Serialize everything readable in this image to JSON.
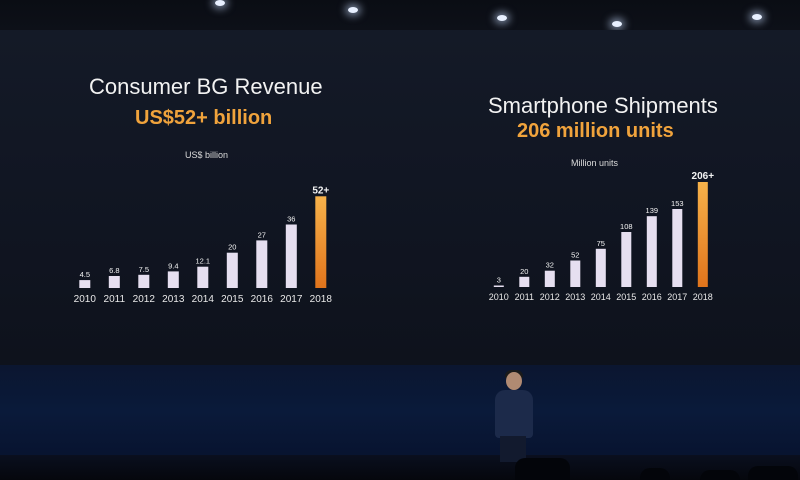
{
  "left_panel": {
    "title": "Consumer BG Revenue",
    "highlight": "US$52+ billion",
    "unit_label": "US$ billion"
  },
  "right_panel": {
    "title": "Smartphone Shipments",
    "highlight": "206 million units",
    "unit_label": "Million units"
  },
  "colors": {
    "bar_regular": "#e6dff0",
    "bar_highlight_top": "#f7b24a",
    "bar_highlight_bottom": "#e0741c",
    "title_text": "#f2f2f2",
    "highlight_text": "#f0a33c",
    "background": "#121725"
  },
  "chart_data": [
    {
      "type": "bar",
      "title": "Consumer BG Revenue",
      "subtitle": "US$52+ billion",
      "ylabel": "US$ billion",
      "categories": [
        "2010",
        "2011",
        "2012",
        "2013",
        "2014",
        "2015",
        "2016",
        "2017",
        "2018"
      ],
      "values": [
        4.5,
        6.8,
        7.5,
        9.4,
        12.1,
        20,
        27,
        36,
        52
      ],
      "value_labels": [
        "4.5",
        "6.8",
        "7.5",
        "9.4",
        "12.1",
        "20",
        "27",
        "36",
        "52+"
      ],
      "highlight_index": 8,
      "ylim": [
        0,
        55
      ],
      "grid": false
    },
    {
      "type": "bar",
      "title": "Smartphone Shipments",
      "subtitle": "206 million units",
      "ylabel": "Million units",
      "categories": [
        "2010",
        "2011",
        "2012",
        "2013",
        "2014",
        "2015",
        "2016",
        "2017",
        "2018"
      ],
      "values": [
        3,
        20,
        32,
        52,
        75,
        108,
        139,
        153,
        206
      ],
      "value_labels": [
        "3",
        "20",
        "32",
        "52",
        "75",
        "108",
        "139",
        "153",
        "206+"
      ],
      "highlight_index": 8,
      "ylim": [
        0,
        210
      ],
      "grid": false
    }
  ]
}
